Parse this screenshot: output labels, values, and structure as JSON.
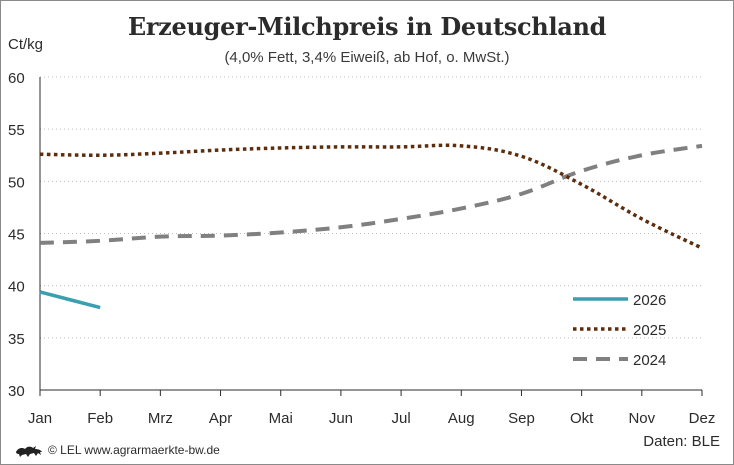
{
  "title": "Erzeuger-Milchpreis in Deutschland",
  "subtitle": "(4,0% Fett, 3,4% Eiweiß, ab Hof, o. MwSt.)",
  "footer": {
    "copyright": "© LEL www.agrarmaerkte-bw.de",
    "source": "Daten: BLE"
  },
  "chart_data": {
    "type": "line",
    "title": "Erzeuger-Milchpreis in Deutschland",
    "subtitle": "(4,0% Fett, 3,4% Eiweiß, ab Hof, o. MwSt.)",
    "ylabel": "Ct/kg",
    "xlabel": "",
    "categories": [
      "Jan",
      "Feb",
      "Mrz",
      "Apr",
      "Mai",
      "Jun",
      "Jul",
      "Aug",
      "Sep",
      "Okt",
      "Nov",
      "Dez"
    ],
    "ylim": [
      30,
      60
    ],
    "yticks": [
      30,
      35,
      40,
      45,
      50,
      55,
      60
    ],
    "grid": "horizontal-dotted",
    "legend_position": "bottom-right",
    "series": [
      {
        "name": "2026",
        "color": "#3a9fb0",
        "style": "solid",
        "values": [
          39.4,
          37.9,
          null,
          null,
          null,
          null,
          null,
          null,
          null,
          null,
          null,
          null
        ]
      },
      {
        "name": "2025",
        "color": "#5c2e0e",
        "style": "dotted",
        "values": [
          52.6,
          52.5,
          52.7,
          53.0,
          53.2,
          53.3,
          53.3,
          53.4,
          52.4,
          49.7,
          46.4,
          43.6
        ]
      },
      {
        "name": "2024",
        "color": "#808080",
        "style": "dashed",
        "values": [
          44.1,
          44.3,
          44.7,
          44.8,
          45.1,
          45.6,
          46.4,
          47.4,
          48.8,
          51.0,
          52.5,
          53.4
        ]
      }
    ]
  }
}
